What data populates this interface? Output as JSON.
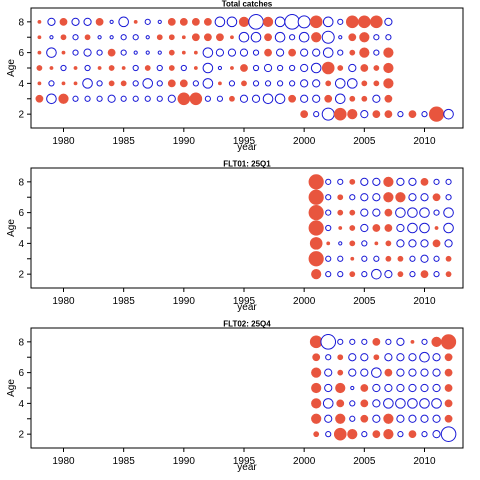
{
  "colors": {
    "positive": "#e8553e",
    "negative": "#1a1ad6"
  },
  "chart_data": [
    {
      "type": "bubble",
      "title": "Total catches",
      "xlabel": "year",
      "ylabel": "Age",
      "xlim": [
        1977.3,
        2013.2
      ],
      "ylim": [
        1.1,
        8.9
      ],
      "x_ticks": [
        1980,
        1985,
        1990,
        1995,
        2000,
        2005,
        2010
      ],
      "y_ticks": [
        2,
        4,
        6,
        8
      ],
      "years_first": 1978,
      "rows": [
        {
          "age": 8,
          "cells": [
            "p1",
            "n3",
            "p3",
            "n3",
            "n3",
            "p3",
            "n1",
            "n4",
            "p1",
            "n2",
            "n1",
            "p3",
            "p3",
            "p3",
            "p3",
            "n4",
            "n4",
            "p4",
            "n6",
            "p4",
            "n4",
            "n6",
            "n5",
            "p5",
            "n4",
            "n2",
            "p5",
            "p5",
            "p5",
            "n3"
          ]
        },
        {
          "age": 7,
          "cells": [
            "p1",
            "n1",
            "p2",
            "n2",
            "p2",
            "n1",
            "n1",
            "n2",
            "n2",
            "n1",
            "p2",
            "p2",
            "p1",
            "p3",
            "p3",
            "p3",
            "p1",
            "n4",
            "n4",
            "p3",
            "n4",
            "n2",
            "n4",
            "p4",
            "n5",
            "n1",
            "p3",
            "p4",
            "n2",
            "n2"
          ]
        },
        {
          "age": 6,
          "cells": [
            "p1",
            "n4",
            "p1",
            "n2",
            "n3",
            "n2",
            "p3",
            "n2",
            "n1",
            "n1",
            "n1",
            "p2",
            "p1",
            "p1",
            "n4",
            "n3",
            "n3",
            "n3",
            "n2",
            "p3",
            "n3",
            "p3",
            "n3",
            "n3",
            "n4",
            "n2",
            "p2",
            "p4",
            "n2",
            "p4"
          ]
        },
        {
          "age": 5,
          "cells": [
            "p2",
            "p1",
            "n2",
            "p1",
            "n2",
            "p1",
            "p2",
            "p1",
            "n2",
            "p2",
            "n2",
            "p2",
            "n2",
            "p1",
            "n4",
            "n1",
            "p1",
            "p3",
            "n2",
            "n3",
            "n2",
            "n2",
            "n3",
            "n4",
            "p5",
            "p2",
            "n3",
            "p3",
            "p2",
            "p4"
          ]
        },
        {
          "age": 4,
          "cells": [
            "p1",
            "n2",
            "p1",
            "p1",
            "n4",
            "n2",
            "p2",
            "p2",
            "n2",
            "n4",
            "n2",
            "p3",
            "p3",
            "n2",
            "n4",
            "p1",
            "n2",
            "p2",
            "n2",
            "n2",
            "n2",
            "n2",
            "n3",
            "n3",
            "p2",
            "n4",
            "n4",
            "p2",
            "p2",
            "p4"
          ]
        },
        {
          "age": 3,
          "cells": [
            "p3",
            "n4",
            "p4",
            "n2",
            "n2",
            "n2",
            "n3",
            "n2",
            "n2",
            "n2",
            "n2",
            "n3",
            "p5",
            "p5",
            "n2",
            "n2",
            "p2",
            "n3",
            "n3",
            "n4",
            "n4",
            "p3",
            "n3",
            "n3",
            "p3",
            "n4",
            "p2",
            "p2",
            "n3",
            "p3"
          ]
        },
        {
          "age": 2,
          "cells": [
            null,
            null,
            null,
            null,
            null,
            null,
            null,
            null,
            null,
            null,
            null,
            null,
            null,
            null,
            null,
            null,
            null,
            null,
            null,
            null,
            null,
            null,
            "p3",
            "n2",
            "n5",
            "p5",
            "p4",
            "n3",
            "p3",
            "p3",
            "n2",
            "p3",
            "n2",
            "p6",
            "n4"
          ]
        }
      ]
    },
    {
      "type": "bubble",
      "title": "FLT01: 25Q1",
      "xlabel": "year",
      "ylabel": "Age",
      "xlim": [
        1977.3,
        2013.2
      ],
      "ylim": [
        1.1,
        8.9
      ],
      "x_ticks": [
        1980,
        1985,
        1990,
        1995,
        2000,
        2005,
        2010
      ],
      "y_ticks": [
        2,
        4,
        6,
        8
      ],
      "years_first": 2001,
      "rows": [
        {
          "age": 8,
          "cells": [
            "p6",
            "n2",
            "n2",
            "p2",
            "n3",
            "n3",
            "p4",
            "n3",
            "n3",
            "p3",
            "n2",
            "n2"
          ]
        },
        {
          "age": 7,
          "cells": [
            "p6",
            "n2",
            "p2",
            "n2",
            "n3",
            "n3",
            "p4",
            "p4",
            "n3",
            "n3",
            "p3",
            "n2"
          ]
        },
        {
          "age": 6,
          "cells": [
            "p6",
            "n2",
            "p2",
            "p2",
            "n3",
            "n3",
            "p3",
            "n4",
            "n4",
            "n4",
            "n2",
            "n4"
          ]
        },
        {
          "age": 5,
          "cells": [
            "p6",
            "n2",
            "p1",
            "p2",
            "n3",
            "p3",
            "p3",
            "n3",
            "n4",
            "n4",
            "p1",
            "n4"
          ]
        },
        {
          "age": 4,
          "cells": [
            "p5",
            "p1",
            "n1",
            "p2",
            "n2",
            "p1",
            "p2",
            "n3",
            "n3",
            "n3",
            "p3",
            "n3"
          ]
        },
        {
          "age": 3,
          "cells": [
            "p6",
            "n2",
            "n2",
            "p1",
            "n2",
            "n2",
            "p2",
            "p2",
            "n2",
            "n3",
            "n2",
            "p2"
          ]
        },
        {
          "age": 2,
          "cells": [
            "p4",
            "n2",
            "n2",
            "p2",
            "n2",
            "n4",
            "n3",
            "p2",
            "n2",
            "p3",
            "n2",
            "p2"
          ]
        }
      ]
    },
    {
      "type": "bubble",
      "title": "FLT02: 25Q4",
      "xlabel": "year",
      "ylabel": "Age",
      "xlim": [
        1977.3,
        2013.2
      ],
      "ylim": [
        1.1,
        8.9
      ],
      "x_ticks": [
        1980,
        1985,
        1990,
        1995,
        2000,
        2005,
        2010
      ],
      "y_ticks": [
        2,
        4,
        6,
        8
      ],
      "years_first": 2001,
      "rows": [
        {
          "age": 8,
          "cells": [
            "p5",
            "n6",
            "n2",
            "n2",
            "n2",
            "p3",
            "n2",
            "n3",
            "p1",
            "n2",
            "p4",
            "p6"
          ]
        },
        {
          "age": 7,
          "cells": [
            "p3",
            "n2",
            "p2",
            "n3",
            "n3",
            "p2",
            "n3",
            "n3",
            "n3",
            "n4",
            "n3",
            "p3"
          ]
        },
        {
          "age": 6,
          "cells": [
            "p4",
            "n3",
            "p2",
            "n3",
            "n3",
            "n4",
            "p3",
            "n3",
            "n3",
            "n3",
            "n3",
            "p3"
          ]
        },
        {
          "age": 5,
          "cells": [
            "p4",
            "n3",
            "p4",
            "n1",
            "p3",
            "n3",
            "n3",
            "n3",
            "n3",
            "n3",
            "n3",
            "p3"
          ]
        },
        {
          "age": 4,
          "cells": [
            "p4",
            "n4",
            "p3",
            "n2",
            "p3",
            "n3",
            "n4",
            "n4",
            "n4",
            "n4",
            "n4",
            "p3"
          ]
        },
        {
          "age": 3,
          "cells": [
            "p4",
            "n3",
            "p4",
            "n2",
            "p3",
            "n3",
            "p4",
            "n3",
            "n3",
            "n3",
            "n3",
            "p3"
          ]
        },
        {
          "age": 2,
          "cells": [
            "p2",
            "n2",
            "p5",
            "p4",
            "n2",
            "p3",
            "p4",
            "n2",
            "p3",
            "n2",
            "n3",
            "n6"
          ]
        }
      ]
    }
  ]
}
